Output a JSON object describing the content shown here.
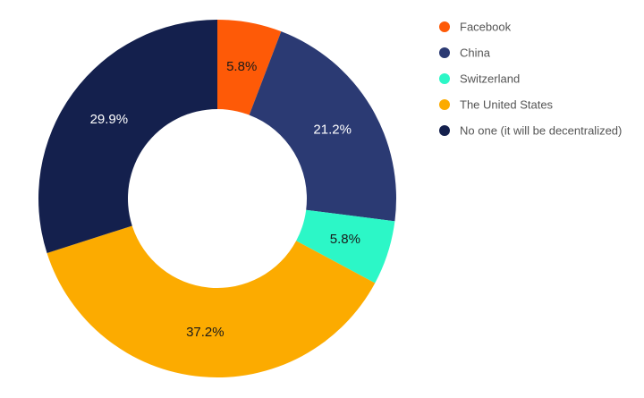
{
  "chart_data": {
    "type": "pie",
    "donut": true,
    "title": "",
    "legend_position": "top-right",
    "slices": [
      {
        "label": "Facebook",
        "value": 5.8,
        "display": "5.8%",
        "color": "#fe5a07",
        "label_color": "dark"
      },
      {
        "label": "China",
        "value": 21.2,
        "display": "21.2%",
        "color": "#2b3a73",
        "label_color": "light"
      },
      {
        "label": "Switzerland",
        "value": 5.8,
        "display": "5.8%",
        "color": "#2cf7c7",
        "label_color": "dark"
      },
      {
        "label": "The United States",
        "value": 37.2,
        "display": "37.2%",
        "color": "#fcab00",
        "label_color": "dark"
      },
      {
        "label": "No one (it will be decentralized)",
        "value": 29.9,
        "display": "29.9%",
        "color": "#14204d",
        "label_color": "light"
      }
    ]
  }
}
